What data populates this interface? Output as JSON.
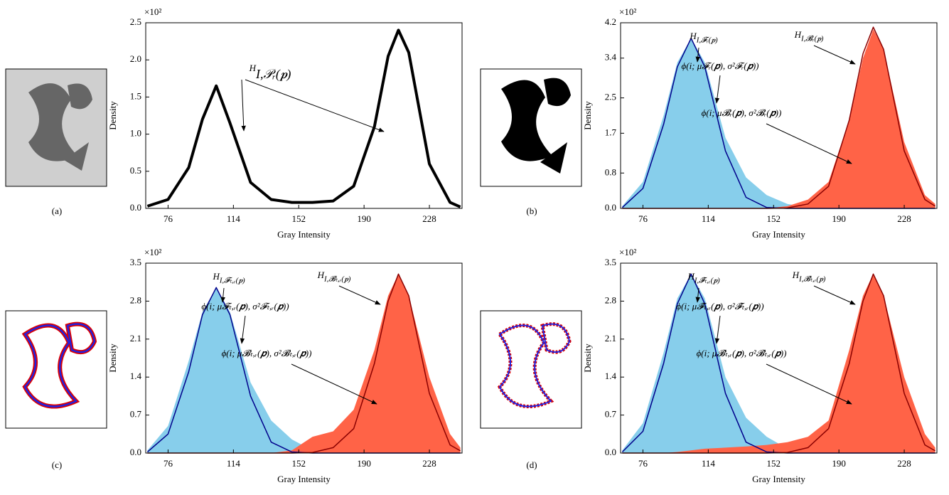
{
  "chart_data": [
    {
      "type": "line",
      "panel_label": "(a)",
      "y_label": "Density",
      "x_label": "Gray Intensity",
      "y_multiplier": "×10²",
      "xlim": [
        63,
        247
      ],
      "xticks": [
        76,
        114,
        152,
        190,
        228
      ],
      "ylim": [
        0,
        2.5
      ],
      "yticks": [
        {
          "value": 0,
          "label": "0.0"
        },
        0.5,
        {
          "value": 1,
          "label": "1.0"
        },
        1.5,
        {
          "value": 2,
          "label": "2.0"
        },
        2.5
      ],
      "x": [
        64,
        76,
        88,
        96,
        104,
        112,
        124,
        136,
        148,
        160,
        172,
        184,
        196,
        204,
        210,
        216,
        228,
        240,
        246
      ],
      "series": [
        {
          "fill": false,
          "color": "#000000",
          "values": [
            0.03,
            0.12,
            0.55,
            1.2,
            1.65,
            1.15,
            0.35,
            0.12,
            0.08,
            0.08,
            0.1,
            0.3,
            1.1,
            2.05,
            2.4,
            2.1,
            0.6,
            0.08,
            0.02
          ]
        }
      ],
      "annotations": [
        {
          "text": "H",
          "sub": "I,𝒫ᵣ(𝒑)"
        }
      ]
    },
    {
      "type": "area",
      "panel_label": "(b)",
      "y_label": "Density",
      "x_label": "Gray Intensity",
      "y_multiplier": "×10²",
      "xlim": [
        63,
        247
      ],
      "xticks": [
        76,
        114,
        152,
        190,
        228
      ],
      "ylim": [
        0,
        4.2
      ],
      "yticks": [
        {
          "value": 0,
          "label": "0.0"
        },
        0.8,
        1.7,
        2.5,
        3.4,
        4.2
      ],
      "x": [
        64,
        76,
        88,
        96,
        104,
        112,
        124,
        136,
        148,
        160,
        172,
        184,
        196,
        204,
        210,
        216,
        228,
        240,
        246
      ],
      "series": [
        {
          "fill": true,
          "color": "#87ceeb",
          "values": [
            0.05,
            0.6,
            2.1,
            3.3,
            3.85,
            3.3,
            1.6,
            0.7,
            0.3,
            0.1,
            0.02,
            0,
            0,
            0,
            0,
            0,
            0,
            0,
            0
          ]
        },
        {
          "fill": true,
          "color": "#ff6347",
          "values": [
            0,
            0,
            0,
            0,
            0,
            0,
            0,
            0,
            0,
            0.05,
            0.2,
            0.6,
            2.0,
            3.4,
            4.05,
            3.6,
            1.5,
            0.3,
            0.1
          ]
        },
        {
          "fill": false,
          "color": "#00008b",
          "values": [
            0.02,
            0.45,
            1.9,
            3.2,
            3.85,
            3.2,
            1.3,
            0.25,
            0.02,
            0,
            0,
            0,
            0,
            0,
            0,
            0,
            0,
            0,
            0
          ]
        },
        {
          "fill": false,
          "color": "#8b0000",
          "values": [
            0,
            0,
            0,
            0,
            0,
            0,
            0,
            0,
            0,
            0.01,
            0.1,
            0.5,
            2.0,
            3.5,
            4.1,
            3.6,
            1.3,
            0.2,
            0.05
          ]
        }
      ],
      "annotations": [
        {
          "text": "H",
          "sub": "I,𝓕ᵣ(𝒑)"
        },
        {
          "text": "H",
          "sub": "I,𝓑ᵣ(𝒑)"
        },
        {
          "text": "ϕ(i; μ𝓕ᵣ(𝒑), σ²𝓕ᵣ(𝒑))"
        },
        {
          "text": "ϕ(i; μ𝓑ᵣ(𝒑), σ²𝓑ᵣ(𝒑))"
        }
      ]
    },
    {
      "type": "area",
      "panel_label": "(c)",
      "y_label": "Density",
      "x_label": "Gray Intensity",
      "y_multiplier": "×10²",
      "xlim": [
        63,
        247
      ],
      "xticks": [
        76,
        114,
        152,
        190,
        228
      ],
      "ylim": [
        0,
        3.5
      ],
      "yticks": [
        {
          "value": 0,
          "label": "0.0"
        },
        0.7,
        1.4,
        2.1,
        2.8,
        3.5
      ],
      "x": [
        64,
        76,
        88,
        96,
        104,
        112,
        124,
        136,
        148,
        160,
        172,
        184,
        196,
        204,
        210,
        216,
        228,
        240,
        246
      ],
      "series": [
        {
          "fill": true,
          "color": "#87ceeb",
          "values": [
            0.05,
            0.5,
            1.7,
            2.6,
            3.05,
            2.6,
            1.3,
            0.6,
            0.25,
            0.05,
            0,
            0,
            0,
            0,
            0,
            0,
            0,
            0,
            0
          ]
        },
        {
          "fill": true,
          "color": "#ff6347",
          "values": [
            0,
            0,
            0,
            0,
            0,
            0,
            0,
            0,
            0.05,
            0.3,
            0.4,
            0.8,
            1.9,
            2.9,
            3.3,
            2.9,
            1.4,
            0.35,
            0.1
          ]
        },
        {
          "fill": false,
          "color": "#00008b",
          "values": [
            0.02,
            0.35,
            1.5,
            2.55,
            3.05,
            2.55,
            1.05,
            0.2,
            0.02,
            0,
            0,
            0,
            0,
            0,
            0,
            0,
            0,
            0,
            0
          ]
        },
        {
          "fill": false,
          "color": "#8b0000",
          "values": [
            0,
            0,
            0,
            0,
            0,
            0,
            0,
            0,
            0,
            0.01,
            0.1,
            0.45,
            1.65,
            2.8,
            3.3,
            2.9,
            1.1,
            0.15,
            0.04
          ]
        }
      ],
      "annotations": [
        {
          "text": "H",
          "sub": "I,𝓕ₜ,ᵣ(𝒑)"
        },
        {
          "text": "H",
          "sub": "I,𝓑ₜ,ᵣ(𝒑)"
        },
        {
          "text": "ϕ(i; μ𝓕ₜ,ᵣ(𝒑), σ²𝓕ₜ,ᵣ(𝒑))"
        },
        {
          "text": "ϕ(i; μ𝓑ₜ,ᵣ(𝒑), σ²𝓑ₜ,ᵣ(𝒑))"
        }
      ]
    },
    {
      "type": "area",
      "panel_label": "(d)",
      "y_label": "Density",
      "x_label": "Gray Intensity",
      "y_multiplier": "×10²",
      "xlim": [
        63,
        247
      ],
      "xticks": [
        76,
        114,
        152,
        190,
        228
      ],
      "ylim": [
        0,
        3.5
      ],
      "yticks": [
        {
          "value": 0,
          "label": "0.0"
        },
        0.7,
        1.4,
        2.1,
        2.8,
        3.5
      ],
      "x": [
        64,
        76,
        88,
        96,
        104,
        112,
        124,
        136,
        148,
        160,
        172,
        184,
        196,
        204,
        210,
        216,
        228,
        240,
        246
      ],
      "series": [
        {
          "fill": true,
          "color": "#87ceeb",
          "values": [
            0.05,
            0.55,
            1.85,
            2.85,
            3.3,
            2.85,
            1.4,
            0.65,
            0.3,
            0.08,
            0.02,
            0,
            0,
            0,
            0,
            0,
            0,
            0,
            0
          ]
        },
        {
          "fill": true,
          "color": "#ff6347",
          "values": [
            0,
            0,
            0,
            0.02,
            0.05,
            0.08,
            0.1,
            0.12,
            0.15,
            0.2,
            0.3,
            0.6,
            1.9,
            2.9,
            3.3,
            2.9,
            1.4,
            0.35,
            0.1
          ]
        },
        {
          "fill": false,
          "color": "#00008b",
          "values": [
            0.02,
            0.4,
            1.65,
            2.75,
            3.3,
            2.75,
            1.1,
            0.2,
            0.02,
            0,
            0,
            0,
            0,
            0,
            0,
            0,
            0,
            0,
            0
          ]
        },
        {
          "fill": false,
          "color": "#8b0000",
          "values": [
            0,
            0,
            0,
            0,
            0,
            0,
            0,
            0,
            0,
            0.01,
            0.1,
            0.45,
            1.65,
            2.8,
            3.3,
            2.9,
            1.1,
            0.15,
            0.04
          ]
        }
      ],
      "annotations": [
        {
          "text": "H",
          "sub": "I,𝓕̂ₜ,ᵣ(𝒑)"
        },
        {
          "text": "H",
          "sub": "I,𝓑̂ₜ,ᵣ(𝒑)"
        },
        {
          "text": "ϕ(i; μ𝓕̂ₜ,ᵣ(𝒑), σ²𝓕̂ₜ,ᵣ(𝒑))"
        },
        {
          "text": "ϕ(i; μ𝓑̂ₜ,ᵣ(𝒑), σ²𝓑̂ₜ,ᵣ(𝒑))"
        }
      ]
    }
  ]
}
